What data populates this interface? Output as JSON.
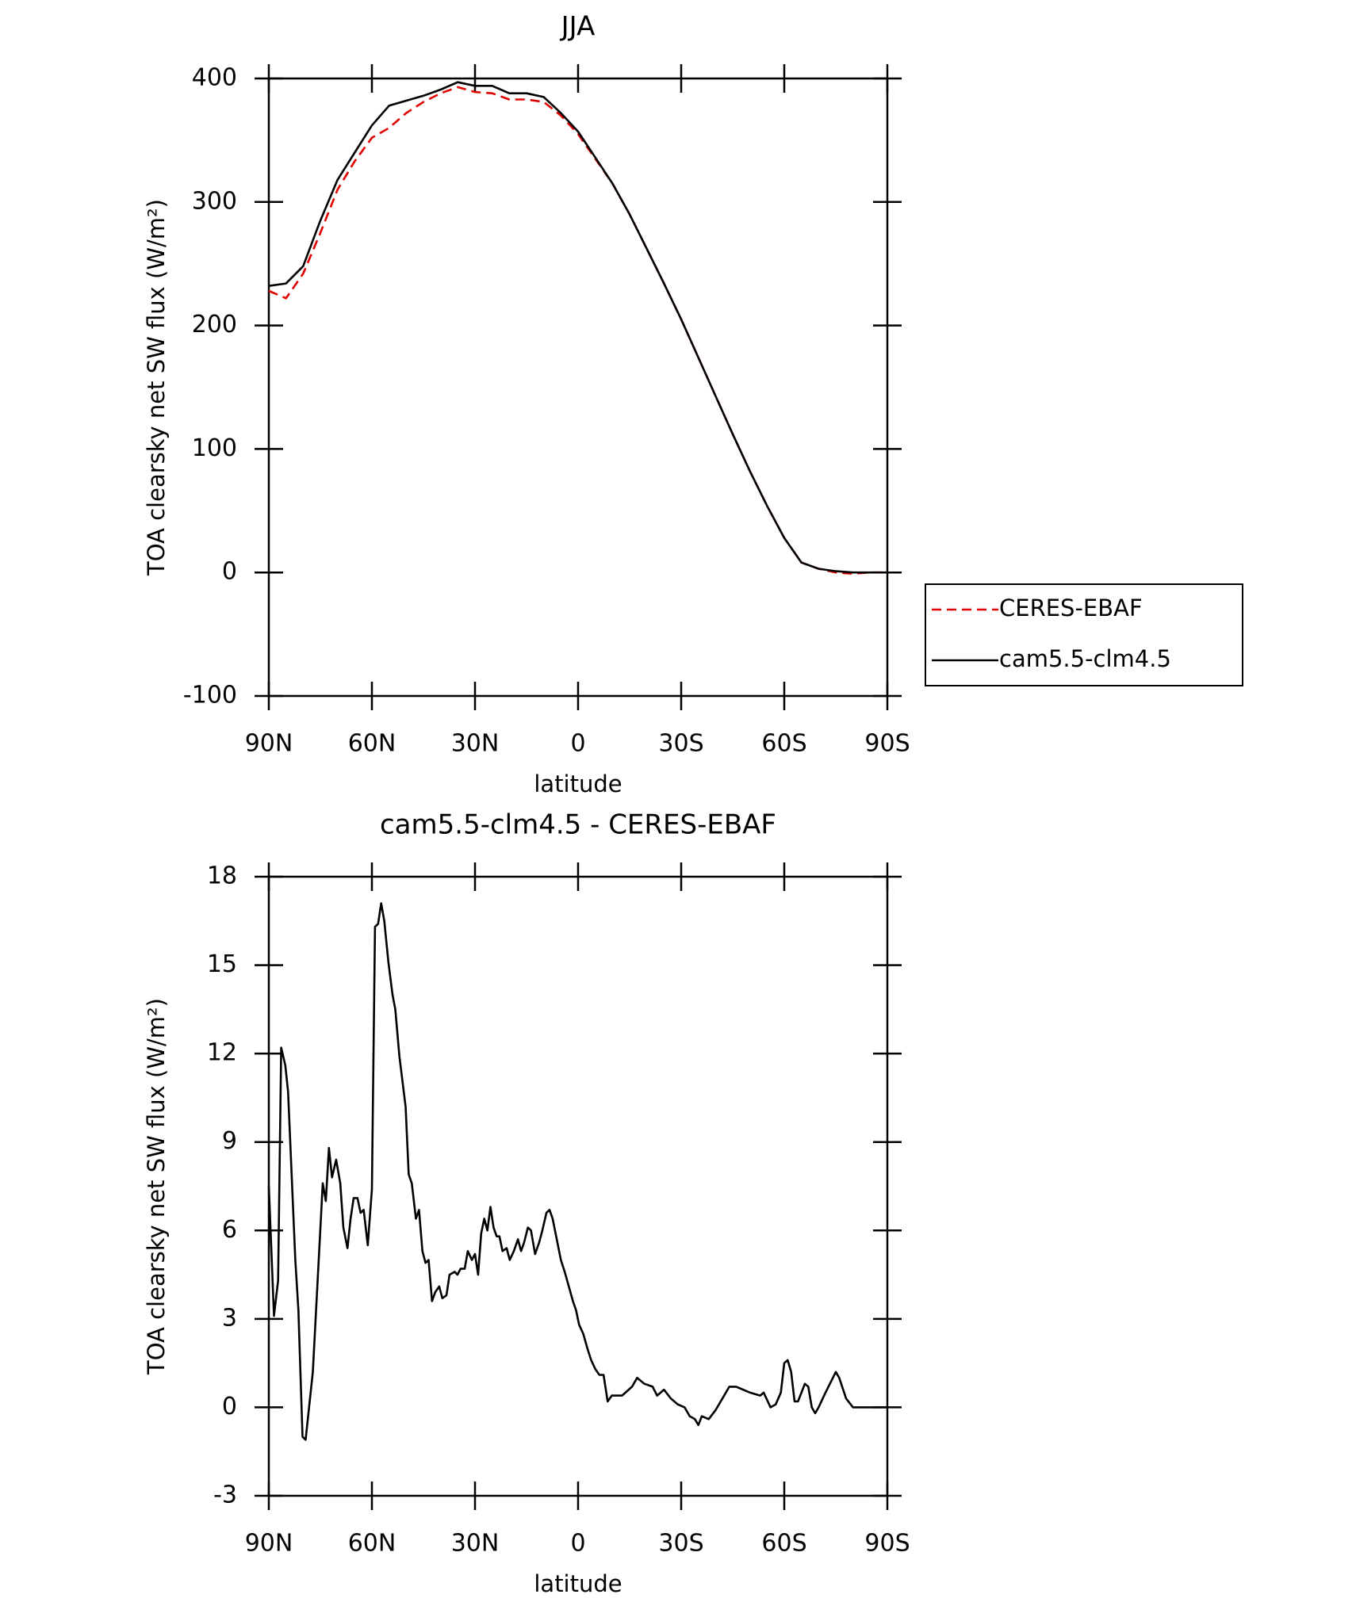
{
  "chart_data": [
    {
      "type": "line",
      "title": "JJA",
      "xlabel": "latitude",
      "ylabel": "TOA clearsky net SW flux (W/m²)",
      "xlim": [
        90,
        -90
      ],
      "xticks": [
        {
          "value": 90,
          "label": "90N"
        },
        {
          "value": 60,
          "label": "60N"
        },
        {
          "value": 30,
          "label": "30N"
        },
        0,
        {
          "value": -30,
          "label": "30S"
        },
        {
          "value": -60,
          "label": "60S"
        },
        {
          "value": -90,
          "label": "90S"
        }
      ],
      "ylim": [
        -100,
        400
      ],
      "yticks": [
        -100,
        0,
        100,
        200,
        300,
        400
      ],
      "legend": "outside-right",
      "x": [
        90,
        85,
        80,
        75,
        70,
        65,
        60,
        55,
        50,
        45,
        40,
        35,
        30,
        25,
        20,
        15,
        10,
        5,
        0,
        -5,
        -10,
        -15,
        -20,
        -25,
        -30,
        -35,
        -40,
        -45,
        -50,
        -55,
        -60,
        -65,
        -70,
        -75,
        -80,
        -85,
        -90
      ],
      "series": [
        {
          "name": "CERES-EBAF",
          "color": "#e00000",
          "dash": "dashed",
          "values": [
            228,
            222,
            242,
            275,
            310,
            333,
            352,
            360,
            372,
            381,
            388,
            393,
            389,
            388,
            383,
            383,
            381,
            370,
            355,
            335,
            315,
            290,
            262,
            234,
            205,
            174,
            143,
            112,
            82,
            54,
            28,
            8,
            3,
            0,
            -1,
            0,
            0
          ]
        },
        {
          "name": "cam5.5-clm4.5",
          "color": "#000000",
          "dash": "solid",
          "values": [
            232,
            234,
            248,
            285,
            318,
            340,
            362,
            378,
            382,
            386,
            391,
            397,
            394,
            394,
            388,
            388,
            385,
            372,
            357,
            336,
            315,
            290,
            262,
            234,
            205,
            174,
            143,
            112,
            82,
            54,
            28,
            8,
            3,
            1,
            0,
            0,
            0
          ]
        }
      ]
    },
    {
      "type": "line",
      "title": "cam5.5-clm4.5 - CERES-EBAF",
      "xlabel": "latitude",
      "ylabel": "TOA clearsky net SW flux (W/m²)",
      "xlim": [
        90,
        -90
      ],
      "xticks": [
        {
          "value": 90,
          "label": "90N"
        },
        {
          "value": 60,
          "label": "60N"
        },
        {
          "value": 30,
          "label": "30N"
        },
        0,
        {
          "value": -30,
          "label": "30S"
        },
        {
          "value": -60,
          "label": "60S"
        },
        {
          "value": -90,
          "label": "90S"
        }
      ],
      "ylim": [
        -3,
        18
      ],
      "yticks": [
        -3,
        0,
        3,
        6,
        9,
        12,
        15,
        18
      ],
      "x": [
        90,
        88.5,
        87.3,
        86.4,
        85.2,
        84.4,
        82.3,
        81.4,
        80.2,
        79.3,
        77.2,
        74.3,
        73.4,
        72.5,
        71.6,
        70.4,
        69.2,
        68.3,
        67.1,
        66.2,
        65.3,
        64.2,
        63.3,
        62.4,
        61.2,
        60,
        59.1,
        58.2,
        57.3,
        56.4,
        55.2,
        54,
        53.2,
        52,
        50.2,
        49.3,
        48.4,
        47.2,
        46.3,
        45.3,
        44.4,
        43.5,
        42.5,
        41.6,
        40.4,
        39.5,
        38.3,
        37.4,
        35.9,
        35.1,
        34.2,
        33,
        32.1,
        30.9,
        30,
        29.1,
        28.2,
        27.3,
        26.4,
        25.5,
        24.6,
        23.7,
        22.9,
        22,
        20.8,
        19.9,
        18.7,
        17.5,
        16.6,
        15.7,
        14.6,
        13.7,
        12.5,
        11.3,
        10.4,
        9.2,
        8.3,
        7.4,
        6.2,
        5,
        3.9,
        2.7,
        1.5,
        0.6,
        -0.3,
        -1.5,
        -2.7,
        -3.8,
        -5,
        -6.2,
        -7.4,
        -8.6,
        -9.8,
        -12.8,
        -15.7,
        -17.2,
        -19.3,
        -21.7,
        -23,
        -25,
        -27,
        -29,
        -31,
        -32.5,
        -34,
        -35,
        -36,
        -38,
        -40,
        -42,
        -44,
        -46,
        -48,
        -50,
        -53,
        -54,
        -56,
        -57.5,
        -59,
        -60,
        -61,
        -62,
        -63,
        -64,
        -66,
        -67,
        -68,
        -69,
        -70,
        -72,
        -75,
        -76,
        -78,
        -80,
        -85,
        -90
      ],
      "color": "#000000",
      "values": [
        7.5,
        3.1,
        4.3,
        12.2,
        11.6,
        10.7,
        5,
        3.3,
        -1,
        -1.1,
        1.2,
        7.6,
        7,
        8.8,
        7.8,
        8.4,
        7.6,
        6.1,
        5.4,
        6.4,
        7.1,
        7.1,
        6.6,
        6.7,
        5.5,
        7.4,
        16.3,
        16.4,
        17.1,
        16.5,
        15.1,
        14,
        13.5,
        11.9,
        10.2,
        7.9,
        7.6,
        6.4,
        6.7,
        5.3,
        4.9,
        5,
        3.6,
        3.9,
        4.1,
        3.7,
        3.8,
        4.5,
        4.6,
        4.5,
        4.7,
        4.7,
        5.3,
        5,
        5.2,
        4.5,
        5.9,
        6.4,
        6,
        6.8,
        6.1,
        5.8,
        5.8,
        5.3,
        5.4,
        5,
        5.3,
        5.7,
        5.3,
        5.6,
        6.1,
        6,
        5.2,
        5.6,
        6,
        6.6,
        6.7,
        6.4,
        5.7,
        5,
        4.6,
        4.1,
        3.6,
        3.3,
        2.8,
        2.5,
        2,
        1.6,
        1.3,
        1.1,
        1.1,
        0.2,
        0.4,
        0.4,
        0.7,
        1,
        0.8,
        0.7,
        0.4,
        0.6,
        0.3,
        0.1,
        0,
        -0.3,
        -0.4,
        -0.6,
        -0.3,
        -0.4,
        -0.1,
        0.3,
        0.7,
        0.7,
        0.6,
        0.5,
        0.4,
        0.5,
        0,
        0.1,
        0.5,
        1.5,
        1.6,
        1.2,
        0.2,
        0.2,
        0.8,
        0.7,
        0,
        -0.2,
        0,
        0.5,
        1.2,
        1,
        0.3,
        0,
        0,
        0
      ]
    }
  ]
}
